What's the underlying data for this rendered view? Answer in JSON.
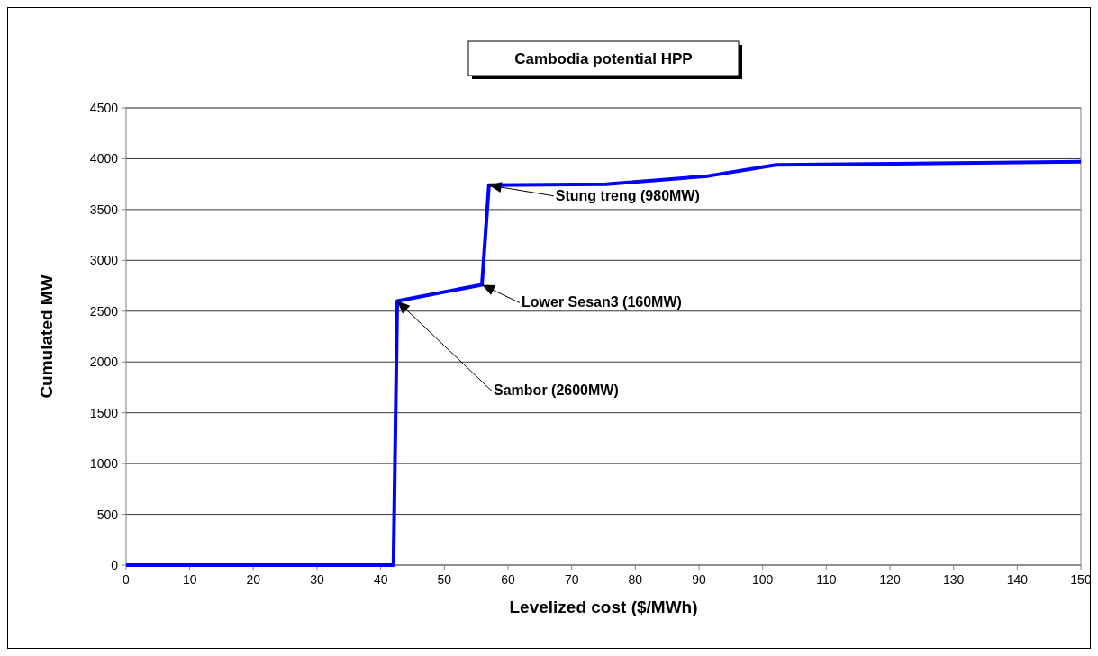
{
  "chart_data": {
    "type": "line",
    "title": "Cambodia potential HPP",
    "xlabel": "Levelized cost ($/MWh)",
    "ylabel": "Cumulated MW",
    "series": [
      {
        "color": "#0000ff",
        "x": [
          0,
          42,
          42.6,
          55.9,
          57,
          75.4,
          91.4,
          102.1,
          150
        ],
        "values": [
          0,
          0,
          2600,
          2760,
          3740,
          3750,
          3830,
          3940,
          3970
        ]
      }
    ],
    "xlim": [
      0,
      150
    ],
    "xticks": [
      0,
      10,
      20,
      30,
      40,
      50,
      60,
      70,
      80,
      90,
      100,
      110,
      120,
      130,
      140,
      150
    ],
    "ylim": [
      0,
      4500
    ],
    "yticks": [
      0,
      500,
      1000,
      1500,
      2000,
      2500,
      3000,
      3500,
      4000,
      4500
    ],
    "grid": "y",
    "marker": "none",
    "line_style": "solid",
    "annotations": [
      {
        "text": "Sambor (2600MW)",
        "x": 42.6,
        "y": 2600
      },
      {
        "text": "Lower Sesan3 (160MW)",
        "x": 55.9,
        "y": 2760
      },
      {
        "text": "Stung treng (980MW)",
        "x": 57,
        "y": 3740
      }
    ]
  }
}
